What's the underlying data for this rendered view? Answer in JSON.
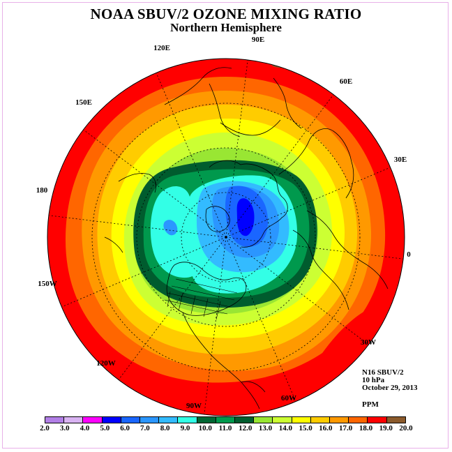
{
  "title": "NOAA SBUV/2 OZONE MIXING RATIO",
  "subtitle": "Northern Hemisphere",
  "longitude_labels": [
    "90E",
    "60E",
    "30E",
    "0",
    "30W",
    "60W",
    "90W",
    "120W",
    "150W",
    "180",
    "150E",
    "120E"
  ],
  "info": {
    "satellite": "N16 SBUV/2",
    "level": "10 hPa",
    "date": "October 29, 2013",
    "units": "PPM"
  },
  "colorbar": {
    "colors": [
      "#b27fe6",
      "#d9b3f2",
      "#ff00ff",
      "#0000ff",
      "#1a66ff",
      "#2b96ff",
      "#33bbff",
      "#33ffe6",
      "#006633",
      "#00994d",
      "#005c2e",
      "#99e633",
      "#ccff33",
      "#ffff00",
      "#ffcc00",
      "#ff9900",
      "#ff6600",
      "#ff0000",
      "#8b5a2b"
    ],
    "ticks": [
      "2.0",
      "3.0",
      "4.0",
      "5.0",
      "6.0",
      "7.0",
      "8.0",
      "9.0",
      "10.0",
      "11.0",
      "12.0",
      "13.0",
      "14.0",
      "15.0",
      "16.0",
      "17.0",
      "18.0",
      "19.0",
      "20.0"
    ]
  },
  "field_colors": {
    "outer": "#ff0000",
    "ring1": "#ff6600",
    "ring2": "#ff9900",
    "ring3": "#ffcc00",
    "ring4": "#ffff00",
    "ring5": "#ccff33",
    "ring6": "#99e633",
    "ring7": "#005c2e",
    "ring8": "#00994d",
    "ring9": "#33ffe6",
    "ring10": "#33bbff",
    "ring11": "#2b96ff",
    "ring12": "#1a66ff",
    "core": "#0000ff",
    "land_patch": "#8b5a2b"
  }
}
